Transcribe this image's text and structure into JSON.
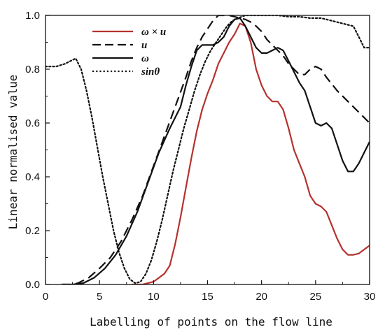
{
  "chart_data": {
    "type": "line",
    "xlabel": "Labelling of points on the flow line",
    "ylabel": "Linear normalised value",
    "xlim": [
      0,
      30
    ],
    "ylim": [
      0,
      1.0
    ],
    "xticks": [
      0,
      5,
      10,
      15,
      20,
      25,
      30
    ],
    "yticks": [
      0.0,
      0.2,
      0.4,
      0.6,
      0.8,
      1.0
    ],
    "xtick_labels": [
      "0",
      "5",
      "10",
      "15",
      "20",
      "25",
      "30"
    ],
    "ytick_labels": [
      "0.0",
      "0.2",
      "0.4",
      "0.6",
      "0.8",
      "1.0"
    ],
    "legend_position": "top-left",
    "series": [
      {
        "name": "ω × u",
        "legend_label": "ω × u",
        "color": "#b5322e",
        "style": "solid",
        "x": [
          8,
          9,
          10,
          11,
          11.5,
          12,
          12.5,
          13,
          13.5,
          14,
          14.5,
          15,
          15.5,
          16,
          16.5,
          17,
          17.5,
          18,
          18.5,
          19,
          19.5,
          20,
          20.5,
          21,
          21.5,
          22,
          22.5,
          23,
          23.5,
          24,
          24.5,
          25,
          25.5,
          26,
          26.5,
          27,
          27.5,
          28,
          28.5,
          29,
          29.5,
          30
        ],
        "values": [
          0.0,
          0.0,
          0.01,
          0.04,
          0.07,
          0.15,
          0.25,
          0.36,
          0.47,
          0.57,
          0.65,
          0.71,
          0.76,
          0.82,
          0.86,
          0.9,
          0.93,
          0.97,
          0.96,
          0.9,
          0.8,
          0.74,
          0.7,
          0.68,
          0.68,
          0.65,
          0.58,
          0.5,
          0.45,
          0.4,
          0.33,
          0.3,
          0.29,
          0.27,
          0.22,
          0.17,
          0.13,
          0.11,
          0.11,
          0.115,
          0.13,
          0.145
        ]
      },
      {
        "name": "u",
        "legend_label": "u",
        "color": "#111111",
        "style": "dashed",
        "x": [
          1.5,
          2.5,
          3,
          4,
          5,
          6,
          7,
          8,
          9,
          10,
          11,
          12,
          13,
          13.5,
          14,
          14.5,
          15,
          15.5,
          16,
          16.5,
          17,
          17.5,
          18,
          18.5,
          19,
          19.5,
          20,
          20.5,
          21,
          21.5,
          22,
          22.5,
          23,
          23.5,
          24,
          24.5,
          25,
          25.5,
          26,
          27,
          28,
          29,
          30
        ],
        "values": [
          0.0,
          0.0,
          0.005,
          0.025,
          0.06,
          0.1,
          0.16,
          0.24,
          0.33,
          0.44,
          0.55,
          0.66,
          0.77,
          0.83,
          0.88,
          0.92,
          0.95,
          0.98,
          1.0,
          1.0,
          1.0,
          0.995,
          0.99,
          0.985,
          0.975,
          0.96,
          0.94,
          0.91,
          0.89,
          0.87,
          0.85,
          0.82,
          0.8,
          0.78,
          0.78,
          0.8,
          0.81,
          0.8,
          0.77,
          0.72,
          0.68,
          0.64,
          0.6
        ]
      },
      {
        "name": "ω",
        "legend_label": "ω",
        "color": "#111111",
        "style": "solid",
        "x": [
          1.5,
          2.5,
          3.5,
          4.5,
          5.5,
          6.5,
          7.5,
          8.5,
          9.5,
          10.5,
          11.5,
          12.5,
          13,
          13.5,
          14,
          14.5,
          15,
          15.5,
          16,
          16.5,
          17,
          17.5,
          18,
          18.5,
          19,
          19.5,
          20,
          20.5,
          21,
          21.5,
          22,
          22.5,
          23,
          23.5,
          24,
          24.5,
          25,
          25.5,
          26,
          26.5,
          27,
          27.5,
          28,
          28.5,
          29,
          29.5,
          30
        ],
        "values": [
          0.0,
          0.0,
          0.005,
          0.025,
          0.06,
          0.11,
          0.18,
          0.27,
          0.38,
          0.49,
          0.58,
          0.66,
          0.74,
          0.81,
          0.87,
          0.89,
          0.89,
          0.89,
          0.9,
          0.92,
          0.96,
          0.985,
          0.99,
          0.96,
          0.92,
          0.88,
          0.86,
          0.86,
          0.87,
          0.88,
          0.87,
          0.83,
          0.79,
          0.75,
          0.72,
          0.66,
          0.6,
          0.59,
          0.6,
          0.58,
          0.52,
          0.46,
          0.42,
          0.42,
          0.45,
          0.49,
          0.53
        ]
      },
      {
        "name": "sinθ",
        "legend_label": "sinθ",
        "color": "#111111",
        "style": "dotted",
        "x": [
          0,
          1,
          1.8,
          2.3,
          2.8,
          3.3,
          3.8,
          4.3,
          4.8,
          5.3,
          5.8,
          6.3,
          6.8,
          7.3,
          7.8,
          8.3,
          8.8,
          9.3,
          9.8,
          10.3,
          10.8,
          11.3,
          11.8,
          12.3,
          12.8,
          13.3,
          13.8,
          14.3,
          14.8,
          15.3,
          15.8,
          16.3,
          16.8,
          17.3,
          17.8,
          18.5,
          19.5,
          20.5,
          21.5,
          22.5,
          23.5,
          24.5,
          25.5,
          26.5,
          27.5,
          28.5,
          29,
          29.5,
          30
        ],
        "values": [
          0.81,
          0.81,
          0.82,
          0.83,
          0.84,
          0.8,
          0.72,
          0.62,
          0.51,
          0.4,
          0.3,
          0.2,
          0.12,
          0.06,
          0.02,
          0.005,
          0.01,
          0.04,
          0.09,
          0.16,
          0.24,
          0.33,
          0.42,
          0.5,
          0.58,
          0.65,
          0.72,
          0.78,
          0.83,
          0.87,
          0.9,
          0.93,
          0.96,
          0.98,
          0.99,
          1.0,
          1.0,
          1.0,
          1.0,
          0.995,
          0.995,
          0.99,
          0.99,
          0.98,
          0.97,
          0.96,
          0.92,
          0.88,
          0.88
        ]
      }
    ]
  }
}
